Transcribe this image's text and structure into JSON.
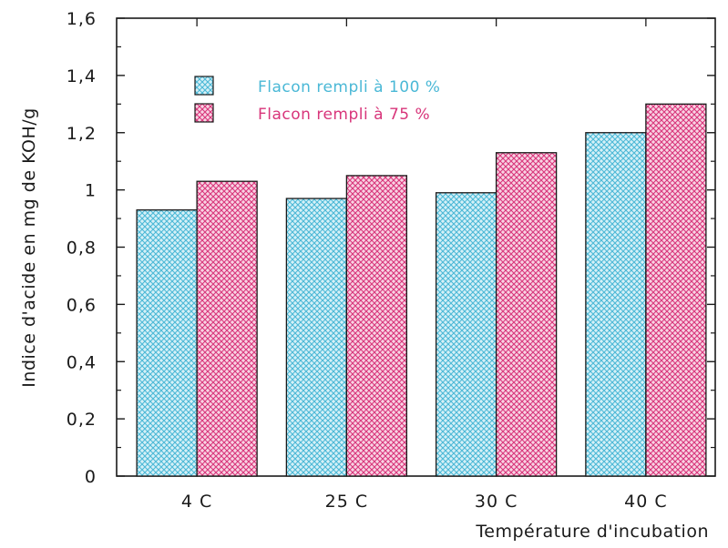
{
  "chart_data": {
    "type": "bar",
    "categories": [
      "4 C",
      "25 C",
      "30 C",
      "40 C"
    ],
    "series": [
      {
        "name": "Flacon rempli à 100 %",
        "values": [
          0.93,
          0.97,
          0.99,
          1.2
        ],
        "color": "#4ab8d6"
      },
      {
        "name": "Flacon rempli à 75 %",
        "values": [
          1.03,
          1.05,
          1.13,
          1.3
        ],
        "color": "#d8357a"
      }
    ],
    "xlabel": "Température  d'incubation",
    "ylabel": "Indice d'acide en mg de KOH/g",
    "ylim": [
      0,
      1.6
    ],
    "yticks": [
      0,
      0.2,
      0.4,
      0.6,
      0.8,
      1.0,
      1.2,
      1.4,
      1.6
    ],
    "ytick_labels": [
      "0",
      "0,2",
      "0,4",
      "0,6",
      "0,8",
      "1",
      "1,2",
      "1,4",
      "1,6"
    ],
    "legend_position": "top-left",
    "grid": false
  }
}
